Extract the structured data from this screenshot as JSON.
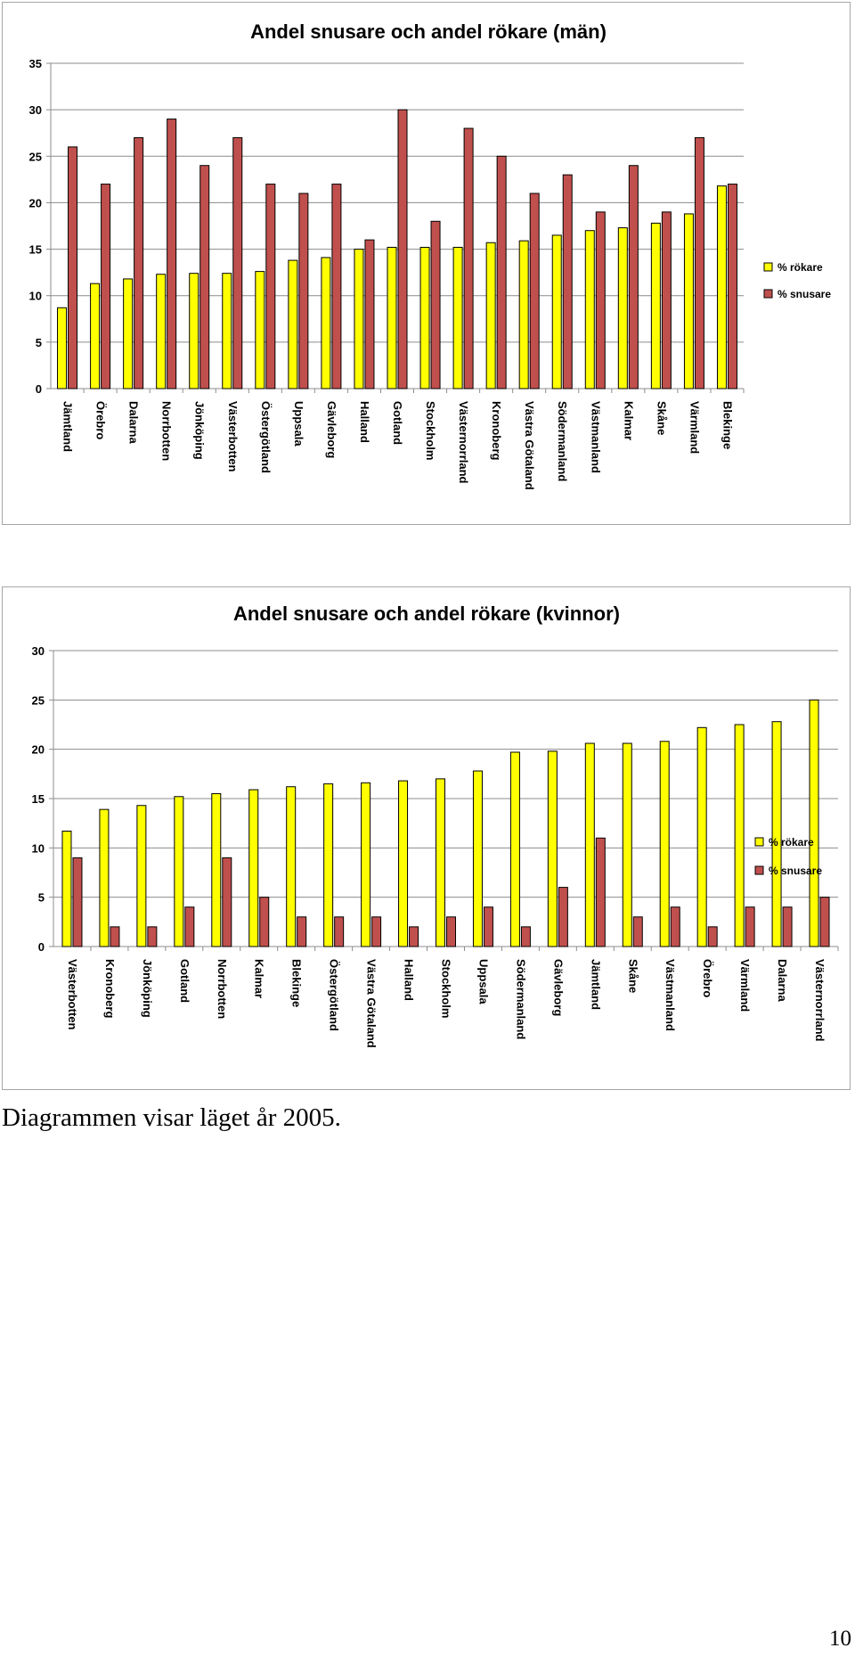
{
  "chart_data": [
    {
      "type": "bar",
      "title": "Andel snusare och andel rökare (män)",
      "categories": [
        "Jämtland",
        "Örebro",
        "Dalarna",
        "Norrbotten",
        "Jönköping",
        "Västerbotten",
        "Östergötland",
        "Uppsala",
        "Gävleborg",
        "Halland",
        "Gotland",
        "Stockholm",
        "Västernorrland",
        "Kronoberg",
        "Västra Götaland",
        "Södermanland",
        "Västmanland",
        "Kalmar",
        "Skåne",
        "Värmland",
        "Blekinge"
      ],
      "series": [
        {
          "name": "% rökare",
          "color": "#ffff00",
          "values": [
            8.7,
            11.3,
            11.8,
            12.3,
            12.4,
            12.4,
            12.6,
            13.8,
            14.1,
            15.0,
            15.2,
            15.2,
            15.2,
            15.7,
            15.9,
            16.5,
            17.0,
            17.3,
            17.8,
            18.8,
            21.8
          ]
        },
        {
          "name": "% snusare",
          "color": "#c0504d",
          "values": [
            26,
            22,
            27,
            29,
            24,
            27,
            22,
            21,
            22,
            16,
            30,
            18,
            28,
            25,
            21,
            23,
            19,
            24,
            19,
            27,
            22
          ]
        }
      ],
      "yticks": [
        0,
        5,
        10,
        15,
        20,
        25,
        30,
        35
      ],
      "ylim": [
        0,
        35
      ],
      "grid": true,
      "legend_position": "right"
    },
    {
      "type": "bar",
      "title": "Andel snusare och andel rökare (kvinnor)",
      "categories": [
        "Västerbotten",
        "Kronoberg",
        "Jönköping",
        "Gotland",
        "Norrbotten",
        "Kalmar",
        "Blekinge",
        "Östergötland",
        "Västra Götaland",
        "Halland",
        "Stockholm",
        "Uppsala",
        "Södermanland",
        "Gävleborg",
        "Jämtland",
        "Skåne",
        "Västmanland",
        "Örebro",
        "Värmland",
        "Dalarna",
        "Västernorrland"
      ],
      "series": [
        {
          "name": "% rökare",
          "color": "#ffff00",
          "values": [
            11.7,
            13.9,
            14.3,
            15.2,
            15.5,
            15.9,
            16.2,
            16.5,
            16.6,
            16.8,
            17.0,
            17.8,
            19.7,
            19.8,
            20.6,
            20.6,
            20.8,
            22.2,
            22.5,
            22.8,
            25.0
          ]
        },
        {
          "name": "% snusare",
          "color": "#c0504d",
          "values": [
            9,
            2,
            2,
            4,
            9,
            5,
            3,
            3,
            3,
            2,
            3,
            4,
            2,
            6,
            11,
            3,
            4,
            2,
            4,
            4,
            5
          ]
        }
      ],
      "yticks": [
        0,
        5,
        10,
        15,
        20,
        25,
        30
      ],
      "ylim": [
        0,
        30
      ],
      "grid": true,
      "legend_position": "right"
    }
  ],
  "caption": "Diagrammen visar läget år 2005.",
  "page_number": "10"
}
